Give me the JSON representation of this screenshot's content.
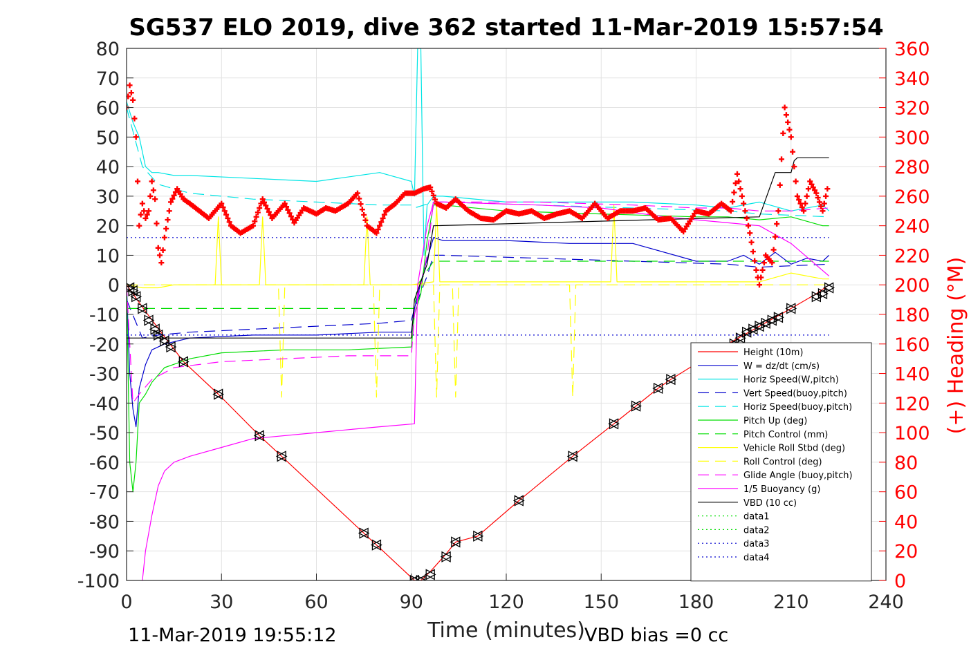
{
  "chart_data": {
    "type": "line",
    "title": "SG537 ELO 2019, dive 362 started 11-Mar-2019 15:57:54",
    "xlabel": "Time (minutes)",
    "ylabel": "",
    "y2label": "(+) Heading (°M)",
    "footer_left": "11-Mar-2019 19:55:12",
    "footer_right": "VBD bias =0 cc",
    "xlim": [
      0,
      240
    ],
    "ylim": [
      -100,
      80
    ],
    "y2lim": [
      0,
      360
    ],
    "xticks": [
      "0",
      "30",
      "60",
      "90",
      "120",
      "150",
      "180",
      "210",
      "240"
    ],
    "yticks": [
      "80",
      "70",
      "60",
      "50",
      "40",
      "30",
      "20",
      "10",
      "0",
      "-10",
      "-20",
      "-30",
      "-40",
      "-50",
      "-60",
      "-70",
      "-80",
      "-90",
      "-100"
    ],
    "y2ticks": [
      "360",
      "340",
      "320",
      "300",
      "280",
      "260",
      "240",
      "220",
      "200",
      "180",
      "160",
      "140",
      "120",
      "100",
      "80",
      "60",
      "40",
      "20",
      "0"
    ],
    "grid": true,
    "legend_position": "lower-right",
    "colors": {
      "red": "#ff0000",
      "blue": "#0000cd",
      "cyan": "#00e5e5",
      "green": "#00dd00",
      "yellow": "#ffff00",
      "magenta": "#ff00ff",
      "black": "#000000",
      "heading": "#ff0000"
    },
    "series": [
      {
        "name": "Height (10m)",
        "color": "#ff0000",
        "style": "solid",
        "x": [
          0,
          2,
          6,
          13,
          18,
          29,
          42,
          49,
          75,
          79,
          91,
          93,
          96,
          101,
          104,
          111,
          124,
          141,
          154,
          161,
          168,
          172,
          190,
          200,
          205,
          210,
          218,
          222
        ],
        "y": [
          0,
          -3,
          -9,
          -19,
          -26,
          -37,
          -51,
          -58,
          -84,
          -88,
          -100,
          -100,
          -97,
          -91,
          -87,
          -85,
          -73,
          -58,
          -47,
          -41,
          -35,
          -32,
          -20,
          -14,
          -11,
          -8,
          -3,
          0
        ]
      },
      {
        "name": "W = dz/dt (cm/s)",
        "color": "#0000cd",
        "style": "solid",
        "x": [
          0,
          1,
          2,
          3,
          4,
          6,
          8,
          12,
          20,
          40,
          60,
          80,
          90,
          91,
          94,
          97,
          100,
          120,
          140,
          160,
          180,
          190,
          195,
          200,
          205,
          210,
          215,
          220,
          222
        ],
        "y": [
          0,
          -30,
          -42,
          -48,
          -35,
          -27,
          -22,
          -20,
          -18,
          -17,
          -17,
          -16,
          -16,
          -8,
          5,
          16,
          15,
          15,
          14,
          14,
          8,
          8,
          10,
          7,
          11,
          7,
          9,
          8,
          10
        ]
      },
      {
        "name": "Horiz Speed(W,pitch)",
        "color": "#00e5e5",
        "style": "solid",
        "x": [
          0,
          2,
          4,
          6,
          8,
          10,
          15,
          20,
          40,
          60,
          80,
          90,
          91,
          92,
          93,
          94,
          95,
          97,
          100,
          120,
          140,
          160,
          180,
          190,
          200,
          210,
          220,
          222
        ],
        "y": [
          62,
          55,
          50,
          40,
          38,
          38,
          37,
          37,
          36,
          35,
          38,
          35,
          30,
          80,
          80,
          10,
          27,
          30,
          30,
          28,
          28,
          28,
          27,
          26,
          28,
          25,
          27,
          25
        ]
      },
      {
        "name": "Vert Speed(buoy,pitch)",
        "color": "#0000cd",
        "style": "dash",
        "x": [
          0,
          5,
          10,
          20,
          40,
          60,
          80,
          90,
          91,
          95,
          97,
          100,
          130,
          160,
          190,
          200,
          222
        ],
        "y": [
          -5,
          -18,
          -17,
          -16,
          -15,
          -14,
          -13,
          -12,
          -8,
          3,
          10,
          10,
          9,
          8,
          7,
          6,
          7
        ]
      },
      {
        "name": "Horiz Speed(buoy,pitch)",
        "color": "#00e5e5",
        "style": "dash",
        "x": [
          0,
          5,
          10,
          20,
          40,
          60,
          80,
          90,
          91,
          97,
          100,
          130,
          160,
          190,
          200,
          222
        ],
        "y": [
          60,
          40,
          34,
          31,
          29,
          28,
          27,
          27,
          26,
          28,
          28,
          27,
          26,
          25,
          24,
          23
        ]
      },
      {
        "name": "Pitch Up (deg)",
        "color": "#00dd00",
        "style": "solid",
        "x": [
          0,
          1,
          2,
          3,
          4,
          6,
          8,
          12,
          20,
          30,
          50,
          70,
          90,
          91,
          93,
          95,
          97,
          100,
          120,
          150,
          180,
          190,
          200,
          210,
          220,
          222
        ],
        "y": [
          0,
          -60,
          -70,
          -60,
          -40,
          -37,
          -33,
          -28,
          -25,
          -23,
          -22,
          -22,
          -21,
          -10,
          -3,
          15,
          27,
          27,
          25,
          24,
          23,
          23,
          22,
          23,
          20,
          20
        ]
      },
      {
        "name": "Pitch Control (mm)",
        "color": "#00dd00",
        "style": "dash",
        "x": [
          0,
          10,
          91,
          92,
          97,
          120,
          150,
          180,
          190,
          222
        ],
        "y": [
          -8,
          -8,
          -8,
          0,
          8,
          8,
          8,
          8,
          8,
          8
        ]
      },
      {
        "name": "Vehicle Roll Stbd (deg)",
        "color": "#ffff00",
        "style": "solid",
        "x": [
          0,
          5,
          10,
          15,
          20,
          28,
          29,
          30,
          42,
          43,
          44,
          75,
          76,
          77,
          90,
          97,
          98,
          99,
          120,
          153,
          154,
          155,
          160,
          200,
          210,
          220,
          222
        ],
        "y": [
          0,
          -1,
          -1,
          0,
          0,
          0,
          23,
          0,
          0,
          23,
          0,
          0,
          23,
          0,
          0,
          1,
          27,
          1,
          1,
          1,
          27,
          1,
          1,
          1,
          4,
          2,
          2
        ]
      },
      {
        "name": "Roll Control (deg)",
        "color": "#ffff00",
        "style": "dash",
        "x": [
          0,
          48,
          49,
          50,
          78,
          79,
          80,
          97,
          98,
          99,
          103,
          104,
          105,
          140,
          141,
          142,
          222
        ],
        "y": [
          0,
          0,
          -38,
          0,
          0,
          -38,
          0,
          0,
          -38,
          0,
          0,
          -38,
          0,
          0,
          -38,
          0,
          0
        ]
      },
      {
        "name": "Glide Angle (buoy,pitch)",
        "color": "#ff00ff",
        "style": "dash",
        "x": [
          0,
          2,
          4,
          8,
          15,
          30,
          50,
          70,
          90,
          91,
          95,
          97,
          100,
          130,
          160,
          180,
          190,
          200,
          210,
          222
        ],
        "y": [
          0,
          -40,
          -37,
          -32,
          -28,
          -26,
          -25,
          -24,
          -24,
          -10,
          10,
          28,
          28,
          28,
          27,
          26,
          26,
          25,
          25,
          26
        ]
      },
      {
        "name": "1/5 Buoyancy (g)",
        "color": "#ff00ff",
        "style": "solid",
        "x": [
          5,
          6,
          8,
          10,
          12,
          15,
          20,
          30,
          40,
          60,
          80,
          91,
          92,
          95,
          97,
          100,
          130,
          150,
          170,
          180,
          190,
          200,
          210,
          222
        ],
        "y": [
          -100,
          -90,
          -78,
          -68,
          -63,
          -60,
          -58,
          -55,
          -52,
          -50,
          -48,
          -47,
          0,
          20,
          28,
          28,
          27,
          26,
          23,
          22,
          21,
          20,
          14,
          3
        ]
      },
      {
        "name": "VBD (10 cc)",
        "color": "#000000",
        "style": "solid",
        "x": [
          0,
          2,
          90,
          91,
          95,
          97,
          200,
          205,
          206,
          210,
          211,
          212,
          222
        ],
        "y": [
          -18,
          -18,
          -18,
          -5,
          7,
          20,
          23,
          38,
          38,
          38,
          42,
          43,
          43
        ]
      },
      {
        "name": "data1",
        "color": "#00dd00",
        "style": "dot",
        "x": [],
        "y": []
      },
      {
        "name": "data2",
        "color": "#00dd00",
        "style": "dot",
        "x": [],
        "y": []
      },
      {
        "name": "data3",
        "color": "#0000cd",
        "style": "dot",
        "x": [
          0,
          222
        ],
        "y": [
          16,
          16
        ]
      },
      {
        "name": "data4",
        "color": "#0000cd",
        "style": "dot",
        "x": [
          0,
          222
        ],
        "y": [
          -17,
          -17
        ]
      }
    ],
    "heading_series": {
      "marker": "+",
      "color": "#ff0000",
      "x": [
        0,
        1,
        2,
        3,
        4,
        5,
        6,
        7,
        8,
        9,
        10,
        11,
        12,
        14,
        16,
        18,
        20,
        23,
        26,
        30,
        33,
        36,
        40,
        43,
        46,
        50,
        53,
        56,
        60,
        63,
        66,
        70,
        73,
        76,
        79,
        82,
        85,
        88,
        91,
        94,
        96,
        98,
        101,
        104,
        108,
        112,
        116,
        120,
        124,
        128,
        132,
        136,
        140,
        144,
        148,
        152,
        156,
        160,
        164,
        168,
        172,
        176,
        180,
        184,
        188,
        191,
        193,
        195,
        197,
        199,
        200,
        202,
        204,
        206,
        208,
        210,
        212,
        214,
        216,
        218,
        220,
        222
      ],
      "y": [
        320,
        335,
        325,
        300,
        240,
        255,
        245,
        250,
        270,
        258,
        225,
        215,
        232,
        256,
        265,
        258,
        255,
        250,
        245,
        255,
        240,
        235,
        240,
        258,
        245,
        255,
        242,
        252,
        248,
        252,
        250,
        255,
        262,
        240,
        235,
        250,
        255,
        262,
        262,
        265,
        266,
        255,
        252,
        258,
        250,
        245,
        244,
        250,
        248,
        250,
        245,
        248,
        250,
        245,
        255,
        245,
        250,
        250,
        252,
        244,
        245,
        236,
        250,
        248,
        255,
        250,
        275,
        255,
        235,
        210,
        200,
        220,
        215,
        250,
        320,
        300,
        260,
        250,
        270,
        262,
        250,
        270
      ]
    },
    "depth_markers": {
      "x": [
        1,
        2,
        3,
        5,
        7,
        9,
        10,
        12,
        14,
        18,
        29,
        42,
        49,
        75,
        79,
        91,
        93,
        96,
        101,
        104,
        111,
        124,
        141,
        154,
        161,
        168,
        172,
        192,
        194,
        196,
        198,
        200,
        202,
        204,
        206,
        210,
        218,
        220,
        222
      ],
      "y": [
        -1,
        -2,
        -4,
        -8,
        -12,
        -15,
        -17,
        -19,
        -21,
        -26,
        -37,
        -51,
        -58,
        -84,
        -88,
        -100,
        -100,
        -98,
        -92,
        -87,
        -85,
        -73,
        -58,
        -47,
        -41,
        -35,
        -32,
        -20,
        -18,
        -16,
        -15,
        -14,
        -13,
        -12,
        -11,
        -8,
        -4,
        -3,
        -1
      ]
    }
  }
}
